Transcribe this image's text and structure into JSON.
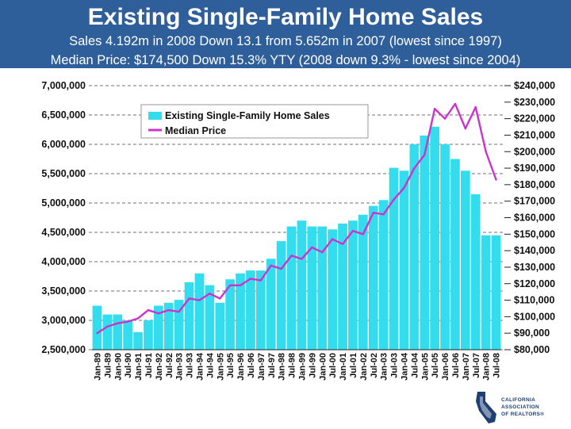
{
  "header": {
    "title": "Existing Single-Family Home Sales",
    "subtitle1": "Sales 4.192m in 2008 Down 13.1 from 5.652m in 2007 (lowest since 1997)",
    "subtitle2": "Median Price: $174,500 Down 15.3% YTY (2008 down 9.3% - lowest since 2004)"
  },
  "logo": {
    "line1": "CALIFORNIA",
    "line2": "ASSOCIATION",
    "line3": "OF REALTORS®"
  },
  "colors": {
    "header_bg": "#2f5f9a",
    "bars": "#33ddee",
    "median_line": "#cc33cc"
  },
  "chart_data": {
    "type": "bar",
    "title": "",
    "grid": "dashed horizontal",
    "legend": "top-left",
    "y_left": {
      "range": [
        2500000,
        7000000
      ],
      "ticks": [
        "2,500,000",
        "3,000,000",
        "3,500,000",
        "4,000,000",
        "4,500,000",
        "5,000,000",
        "5,500,000",
        "6,000,000",
        "6,500,000",
        "7,000,000"
      ]
    },
    "y_right": {
      "range": [
        80000,
        240000
      ],
      "ticks": [
        "$80,000",
        "$90,000",
        "$100,000",
        "$110,000",
        "$120,000",
        "$130,000",
        "$140,000",
        "$150,000",
        "$160,000",
        "$170,000",
        "$180,000",
        "$190,000",
        "$200,000",
        "$210,000",
        "$220,000",
        "$230,000",
        "$240,000"
      ]
    },
    "x_tick_labels": [
      "Jan-89",
      "Jul-89",
      "Jan-90",
      "Jul-90",
      "Jan-91",
      "Jul-91",
      "Jan-92",
      "Jul-92",
      "Jan-93",
      "Jul-93",
      "Jan-94",
      "Jul-94",
      "Jan-95",
      "Jul-95",
      "Jan-96",
      "Jul-96",
      "Jan-97",
      "Jul-97",
      "Jan-98",
      "Jul-98",
      "Jan-99",
      "Jul-99",
      "Jan-00",
      "Jul-00",
      "Jan-01",
      "Jul-01",
      "Jan-02",
      "Jul-02",
      "Jan-03",
      "Jul-03",
      "Jan-04",
      "Jul-04",
      "Jan-05",
      "Jul-05",
      "Jan-06",
      "Jul-06",
      "Jan-07",
      "Jul-07",
      "Jan-08",
      "Jul-08"
    ],
    "series": [
      {
        "name": "Existing Single-Family Home Sales",
        "kind": "bar",
        "axis": "left",
        "points": [
          [
            "Jan-89",
            3250000
          ],
          [
            "Jul-89",
            3100000
          ],
          [
            "Jan-90",
            3100000
          ],
          [
            "Jul-90",
            3000000
          ],
          [
            "Jan-91",
            2800000
          ],
          [
            "Jul-91",
            3000000
          ],
          [
            "Jan-92",
            3250000
          ],
          [
            "Jul-92",
            3300000
          ],
          [
            "Jan-93",
            3350000
          ],
          [
            "Jul-93",
            3650000
          ],
          [
            "Jan-94",
            3800000
          ],
          [
            "Jul-94",
            3600000
          ],
          [
            "Jan-95",
            3300000
          ],
          [
            "Jul-95",
            3700000
          ],
          [
            "Jan-96",
            3800000
          ],
          [
            "Jul-96",
            3850000
          ],
          [
            "Jan-97",
            3850000
          ],
          [
            "Jul-97",
            4050000
          ],
          [
            "Jan-98",
            4350000
          ],
          [
            "Jul-98",
            4600000
          ],
          [
            "Jan-99",
            4700000
          ],
          [
            "Jul-99",
            4600000
          ],
          [
            "Jan-00",
            4600000
          ],
          [
            "Jul-00",
            4550000
          ],
          [
            "Jan-01",
            4650000
          ],
          [
            "Jul-01",
            4700000
          ],
          [
            "Jan-02",
            4800000
          ],
          [
            "Jul-02",
            4950000
          ],
          [
            "Jan-03",
            5050000
          ],
          [
            "Jul-03",
            5600000
          ],
          [
            "Jan-04",
            5550000
          ],
          [
            "Jul-04",
            6000000
          ],
          [
            "Jan-05",
            6150000
          ],
          [
            "Jul-05",
            6300000
          ],
          [
            "Jan-06",
            6000000
          ],
          [
            "Jul-06",
            5750000
          ],
          [
            "Jan-07",
            5550000
          ],
          [
            "Jul-07",
            5150000
          ],
          [
            "Jan-08",
            4450000
          ],
          [
            "Jul-08",
            4450000
          ]
        ]
      },
      {
        "name": "Median Price",
        "kind": "line",
        "axis": "right",
        "points": [
          [
            "Jan-89",
            90000
          ],
          [
            "Jul-89",
            94000
          ],
          [
            "Jan-90",
            96000
          ],
          [
            "Jul-90",
            97000
          ],
          [
            "Jan-91",
            99000
          ],
          [
            "Jul-91",
            104000
          ],
          [
            "Jan-92",
            102000
          ],
          [
            "Jul-92",
            104000
          ],
          [
            "Jan-93",
            103000
          ],
          [
            "Jul-93",
            111000
          ],
          [
            "Jan-94",
            110000
          ],
          [
            "Jul-94",
            114000
          ],
          [
            "Jan-95",
            111000
          ],
          [
            "Jul-95",
            119000
          ],
          [
            "Jan-96",
            119000
          ],
          [
            "Jul-96",
            123000
          ],
          [
            "Jan-97",
            122000
          ],
          [
            "Jul-97",
            131000
          ],
          [
            "Jan-98",
            129000
          ],
          [
            "Jul-98",
            137000
          ],
          [
            "Jan-99",
            135000
          ],
          [
            "Jul-99",
            142000
          ],
          [
            "Jan-00",
            139000
          ],
          [
            "Jul-00",
            147000
          ],
          [
            "Jan-01",
            144000
          ],
          [
            "Jul-01",
            152000
          ],
          [
            "Jan-02",
            150000
          ],
          [
            "Jul-02",
            163000
          ],
          [
            "Jan-03",
            162000
          ],
          [
            "Jul-03",
            171000
          ],
          [
            "Jan-04",
            178000
          ],
          [
            "Jul-04",
            190000
          ],
          [
            "Jan-05",
            198000
          ],
          [
            "Jul-05",
            226000
          ],
          [
            "Jan-06",
            220000
          ],
          [
            "Jul-06",
            229000
          ],
          [
            "Jan-07",
            214000
          ],
          [
            "Jul-07",
            227000
          ],
          [
            "Jan-08",
            200000
          ],
          [
            "Jul-08",
            183000
          ]
        ]
      }
    ]
  }
}
